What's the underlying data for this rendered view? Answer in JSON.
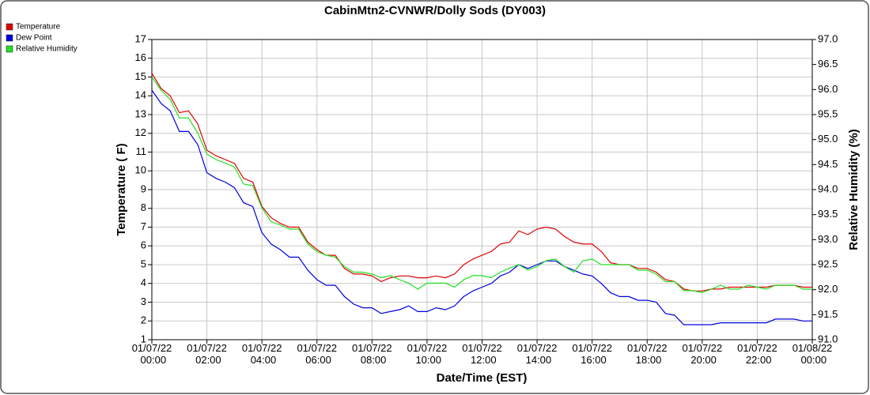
{
  "chart_data": {
    "type": "line",
    "title": "CabinMtn2-CVNWR/Dolly Sods (DY003)",
    "x_label": "Date/Time (EST)",
    "y_label": "Temperature ( F)",
    "y2_label": "Relative Humidity (%)",
    "x": [
      "01/07/22 00:00",
      "01/07/22 00:20",
      "01/07/22 00:40",
      "01/07/22 01:00",
      "01/07/22 01:20",
      "01/07/22 01:40",
      "01/07/22 02:00",
      "01/07/22 02:20",
      "01/07/22 02:40",
      "01/07/22 03:00",
      "01/07/22 03:20",
      "01/07/22 03:40",
      "01/07/22 04:00",
      "01/07/22 04:20",
      "01/07/22 04:40",
      "01/07/22 05:00",
      "01/07/22 05:20",
      "01/07/22 05:40",
      "01/07/22 06:00",
      "01/07/22 06:20",
      "01/07/22 06:40",
      "01/07/22 07:00",
      "01/07/22 07:20",
      "01/07/22 07:40",
      "01/07/22 08:00",
      "01/07/22 08:20",
      "01/07/22 08:40",
      "01/07/22 09:00",
      "01/07/22 09:20",
      "01/07/22 09:40",
      "01/07/22 10:00",
      "01/07/22 10:20",
      "01/07/22 10:40",
      "01/07/22 11:00",
      "01/07/22 11:20",
      "01/07/22 11:40",
      "01/07/22 12:00",
      "01/07/22 12:20",
      "01/07/22 12:40",
      "01/07/22 13:00",
      "01/07/22 13:20",
      "01/07/22 13:40",
      "01/07/22 14:00",
      "01/07/22 14:20",
      "01/07/22 14:40",
      "01/07/22 15:00",
      "01/07/22 15:20",
      "01/07/22 15:40",
      "01/07/22 16:00",
      "01/07/22 16:20",
      "01/07/22 16:40",
      "01/07/22 17:00",
      "01/07/22 17:20",
      "01/07/22 17:40",
      "01/07/22 18:00",
      "01/07/22 18:20",
      "01/07/22 18:40",
      "01/07/22 19:00",
      "01/07/22 19:20",
      "01/07/22 19:40",
      "01/07/22 20:00",
      "01/07/22 20:20",
      "01/07/22 20:40",
      "01/07/22 21:00",
      "01/07/22 21:20",
      "01/07/22 21:40",
      "01/07/22 22:00",
      "01/07/22 22:20",
      "01/07/22 22:40",
      "01/07/22 23:00",
      "01/07/22 23:20",
      "01/07/22 23:40",
      "01/08/22 00:00"
    ],
    "series": [
      {
        "name": "Temperature",
        "color": "#e00000",
        "values": [
          15.2,
          14.4,
          14.0,
          13.1,
          13.2,
          12.5,
          11.1,
          10.8,
          10.6,
          10.4,
          9.6,
          9.4,
          8.1,
          7.5,
          7.2,
          7.0,
          7.0,
          6.2,
          5.8,
          5.5,
          5.5,
          4.8,
          4.5,
          4.5,
          4.4,
          4.1,
          4.3,
          4.4,
          4.4,
          4.3,
          4.3,
          4.4,
          4.3,
          4.5,
          5.0,
          5.3,
          5.5,
          5.7,
          6.1,
          6.2,
          6.8,
          6.6,
          6.9,
          7.0,
          6.9,
          6.5,
          6.2,
          6.1,
          6.1,
          5.7,
          5.1,
          5.0,
          5.0,
          4.8,
          4.8,
          4.6,
          4.2,
          4.1,
          3.7,
          3.6,
          3.6,
          3.7,
          3.7,
          3.8,
          3.8,
          3.8,
          3.8,
          3.8,
          3.9,
          3.9,
          3.9,
          3.8,
          3.8
        ]
      },
      {
        "name": "Dew Point",
        "color": "#0000e0",
        "values": [
          14.3,
          13.6,
          13.2,
          12.1,
          12.1,
          11.4,
          9.9,
          9.6,
          9.4,
          9.1,
          8.3,
          8.1,
          6.7,
          6.1,
          5.8,
          5.4,
          5.4,
          4.7,
          4.2,
          3.9,
          3.9,
          3.3,
          2.9,
          2.7,
          2.7,
          2.4,
          2.5,
          2.6,
          2.8,
          2.5,
          2.5,
          2.7,
          2.6,
          2.8,
          3.3,
          3.6,
          3.8,
          4.0,
          4.4,
          4.6,
          5.0,
          4.8,
          5.0,
          5.2,
          5.2,
          4.9,
          4.7,
          4.5,
          4.4,
          4.0,
          3.5,
          3.3,
          3.3,
          3.1,
          3.1,
          3.0,
          2.4,
          2.3,
          1.8,
          1.8,
          1.8,
          1.8,
          1.9,
          1.9,
          1.9,
          1.9,
          1.9,
          1.9,
          2.1,
          2.1,
          2.1,
          2.0,
          2.0
        ]
      },
      {
        "name": "Relative Humidity",
        "color": "#22e022",
        "axis": "y2",
        "values": [
          96.25,
          95.99,
          95.8,
          95.43,
          95.43,
          95.13,
          94.71,
          94.6,
          94.53,
          94.45,
          94.11,
          94.08,
          93.63,
          93.36,
          93.29,
          93.21,
          93.21,
          92.91,
          92.76,
          92.69,
          92.65,
          92.46,
          92.35,
          92.35,
          92.31,
          92.24,
          92.28,
          92.2,
          92.13,
          92.01,
          92.13,
          92.13,
          92.13,
          92.05,
          92.2,
          92.28,
          92.28,
          92.24,
          92.35,
          92.43,
          92.5,
          92.39,
          92.46,
          92.58,
          92.61,
          92.46,
          92.35,
          92.58,
          92.61,
          92.5,
          92.5,
          92.5,
          92.5,
          92.39,
          92.39,
          92.31,
          92.16,
          92.16,
          91.98,
          91.98,
          91.94,
          92.01,
          92.09,
          92.01,
          92.01,
          92.09,
          92.05,
          92.01,
          92.09,
          92.09,
          92.09,
          92.01,
          92.01
        ]
      }
    ],
    "xlim": [
      "01/07/22 00:00",
      "01/08/22 00:00"
    ],
    "xticks": [
      "01/07/22 00:00",
      "01/07/22 02:00",
      "01/07/22 04:00",
      "01/07/22 06:00",
      "01/07/22 08:00",
      "01/07/22 10:00",
      "01/07/22 12:00",
      "01/07/22 14:00",
      "01/07/22 16:00",
      "01/07/22 18:00",
      "01/07/22 20:00",
      "01/07/22 22:00",
      "01/08/22 00:00"
    ],
    "ylim": [
      1,
      17
    ],
    "yticks": [
      1,
      2,
      3,
      4,
      5,
      6,
      7,
      8,
      9,
      10,
      11,
      12,
      13,
      14,
      15,
      16,
      17
    ],
    "y2lim": [
      91,
      97
    ],
    "y2ticks": [
      {
        "value": 91,
        "label": "91.0"
      },
      91.5,
      {
        "value": 92,
        "label": "92.0"
      },
      92.5,
      {
        "value": 93,
        "label": "93.0"
      },
      93.5,
      {
        "value": 94,
        "label": "94.0"
      },
      94.5,
      {
        "value": 95,
        "label": "95.0"
      },
      95.5,
      {
        "value": 96,
        "label": "96.0"
      },
      96.5,
      {
        "value": 97,
        "label": "97.0"
      }
    ],
    "grid": true,
    "legend": "top-left"
  }
}
